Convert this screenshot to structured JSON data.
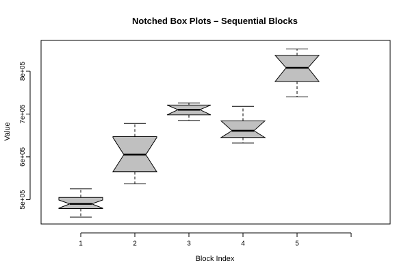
{
  "chart_data": {
    "type": "boxplot",
    "notched": true,
    "title": "Notched Box Plots – Sequential Blocks",
    "xlabel": "Block Index",
    "ylabel": "Value",
    "x_ticks": [
      "1",
      "2",
      "3",
      "4",
      "5",
      ""
    ],
    "y_ticks": [
      {
        "value": 500000,
        "label": "5e+05"
      },
      {
        "value": 600000,
        "label": "6e+05"
      },
      {
        "value": 700000,
        "label": "7e+05"
      },
      {
        "value": 800000,
        "label": "8e+05"
      }
    ],
    "ylim": [
      443000,
      872000
    ],
    "box_color": "#c0c0c0",
    "boxes": [
      {
        "label": "1",
        "whisker_low": 459000,
        "q1": 479000,
        "median": 490000,
        "q3": 505000,
        "whisker_high": 525000,
        "notch_low": 480000,
        "notch_high": 499000
      },
      {
        "label": "2",
        "whisker_low": 537000,
        "q1": 565000,
        "median": 605000,
        "q3": 647000,
        "whisker_high": 678000,
        "notch_low": 565000,
        "notch_high": 645000
      },
      {
        "label": "3",
        "whisker_low": 685000,
        "q1": 698000,
        "median": 710000,
        "q3": 721000,
        "whisker_high": 726000,
        "notch_low": 698000,
        "notch_high": 721000
      },
      {
        "label": "4",
        "whisker_low": 632000,
        "q1": 645000,
        "median": 661000,
        "q3": 684000,
        "whisker_high": 718000,
        "notch_low": 645000,
        "notch_high": 684000
      },
      {
        "label": "5",
        "whisker_low": 740000,
        "q1": 776000,
        "median": 808000,
        "q3": 837000,
        "whisker_high": 852000,
        "notch_low": 776000,
        "notch_high": 837000
      }
    ]
  }
}
